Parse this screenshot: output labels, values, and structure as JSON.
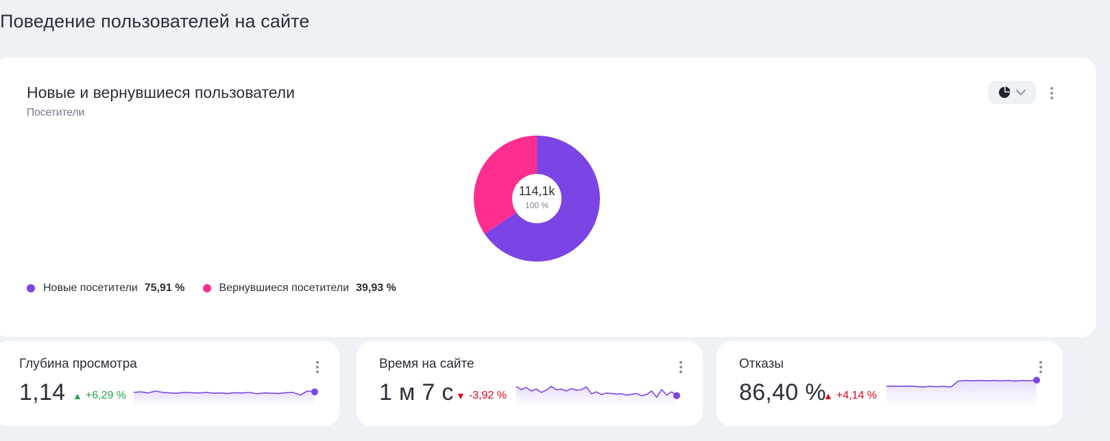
{
  "page": {
    "title": "Поведение пользователей на сайте"
  },
  "main_card": {
    "title": "Новые и вернувшиеся пользователи",
    "subtitle": "Посетители",
    "chart_toggle_icon": "pie-chart-icon",
    "chart_toggle_chevron": "chevron-down-icon",
    "more_icon": "more-vertical-icon"
  },
  "chart_data": {
    "type": "pie",
    "center_value": "114,1k",
    "center_pct": "100 %",
    "slices": [
      {
        "name": "Новые посетители",
        "value": 75.91,
        "label": "75,91 %",
        "color": "#7b44e4"
      },
      {
        "name": "Вернувшиеся посетители",
        "value": 39.93,
        "label": "39,93 %",
        "color": "#fd2e90"
      }
    ]
  },
  "metrics": [
    {
      "title": "Глубина просмотра",
      "value": "1,14",
      "delta": "+6,29 %",
      "delta_dir": "up",
      "delta_color": "#1fa34a",
      "spark": [
        0.5,
        0.52,
        0.48,
        0.55,
        0.5,
        0.48,
        0.47,
        0.5,
        0.49,
        0.48,
        0.5,
        0.47,
        0.48,
        0.46,
        0.49,
        0.48,
        0.5,
        0.45,
        0.48,
        0.47,
        0.46,
        0.49,
        0.5,
        0.4,
        0.55,
        0.52
      ]
    },
    {
      "title": "Время на сайте",
      "value": "1 м 7 с",
      "delta": "-3,92 %",
      "delta_dir": "down",
      "delta_color": "#e0001b",
      "spark": [
        0.72,
        0.6,
        0.68,
        0.55,
        0.62,
        0.5,
        0.58,
        0.72,
        0.6,
        0.62,
        0.55,
        0.64,
        0.58,
        0.6,
        0.7,
        0.45,
        0.52,
        0.42,
        0.48,
        0.46,
        0.44,
        0.45,
        0.4,
        0.43,
        0.46,
        0.38,
        0.42,
        0.55,
        0.32,
        0.6,
        0.4,
        0.52,
        0.38
      ]
    },
    {
      "title": "Отказы",
      "value": "86,40 %",
      "delta": "+4,14 %",
      "delta_dir": "up",
      "delta_color": "#e0001b",
      "spark": [
        0.62,
        0.63,
        0.62,
        0.63,
        0.62,
        0.6,
        0.62,
        0.61,
        0.62,
        0.6,
        0.78,
        0.8,
        0.79,
        0.8,
        0.79,
        0.8,
        0.79,
        0.8,
        0.78,
        0.8,
        0.79,
        0.81
      ]
    }
  ],
  "colors": {
    "accent": "#7b44e4",
    "pink": "#fd2e90",
    "positive": "#1fa34a",
    "negative": "#e0001b"
  }
}
